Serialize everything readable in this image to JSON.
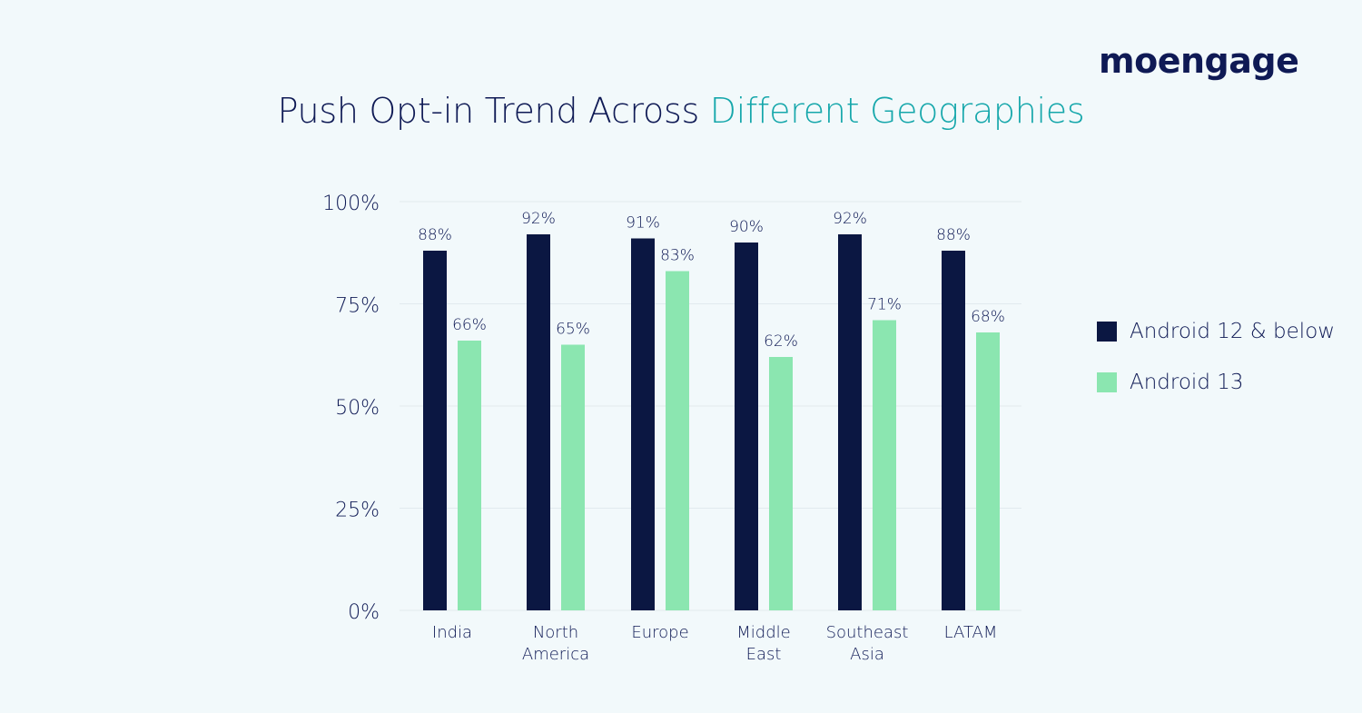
{
  "brand": {
    "logo_text": "moengage",
    "color": "#0f1a55"
  },
  "title": {
    "part1": "Push Opt-in Trend Across ",
    "part2": "Different Geographies"
  },
  "colors": {
    "series1": "#0b1742",
    "series2": "#8be6b0",
    "text": "#0f1a55",
    "accent": "#16a7ab",
    "grid": "#e1eaee"
  },
  "chart_data": {
    "type": "bar",
    "categories": [
      [
        "India"
      ],
      [
        "North",
        "America"
      ],
      [
        "Europe"
      ],
      [
        "Middle",
        "East"
      ],
      [
        "Southeast",
        "Asia"
      ],
      [
        "LATAM"
      ]
    ],
    "series": [
      {
        "name": "Android 12 & below",
        "values": [
          88,
          92,
          91,
          90,
          92,
          88
        ]
      },
      {
        "name": "Android 13",
        "values": [
          66,
          65,
          83,
          62,
          71,
          68
        ]
      }
    ],
    "ylim": [
      0,
      100
    ],
    "yticks": [
      0,
      25,
      50,
      75,
      100
    ],
    "ytick_labels": [
      "0%",
      "25%",
      "50%",
      "75%",
      "100%"
    ],
    "value_suffix": "%",
    "grid": true,
    "legend": "right"
  }
}
